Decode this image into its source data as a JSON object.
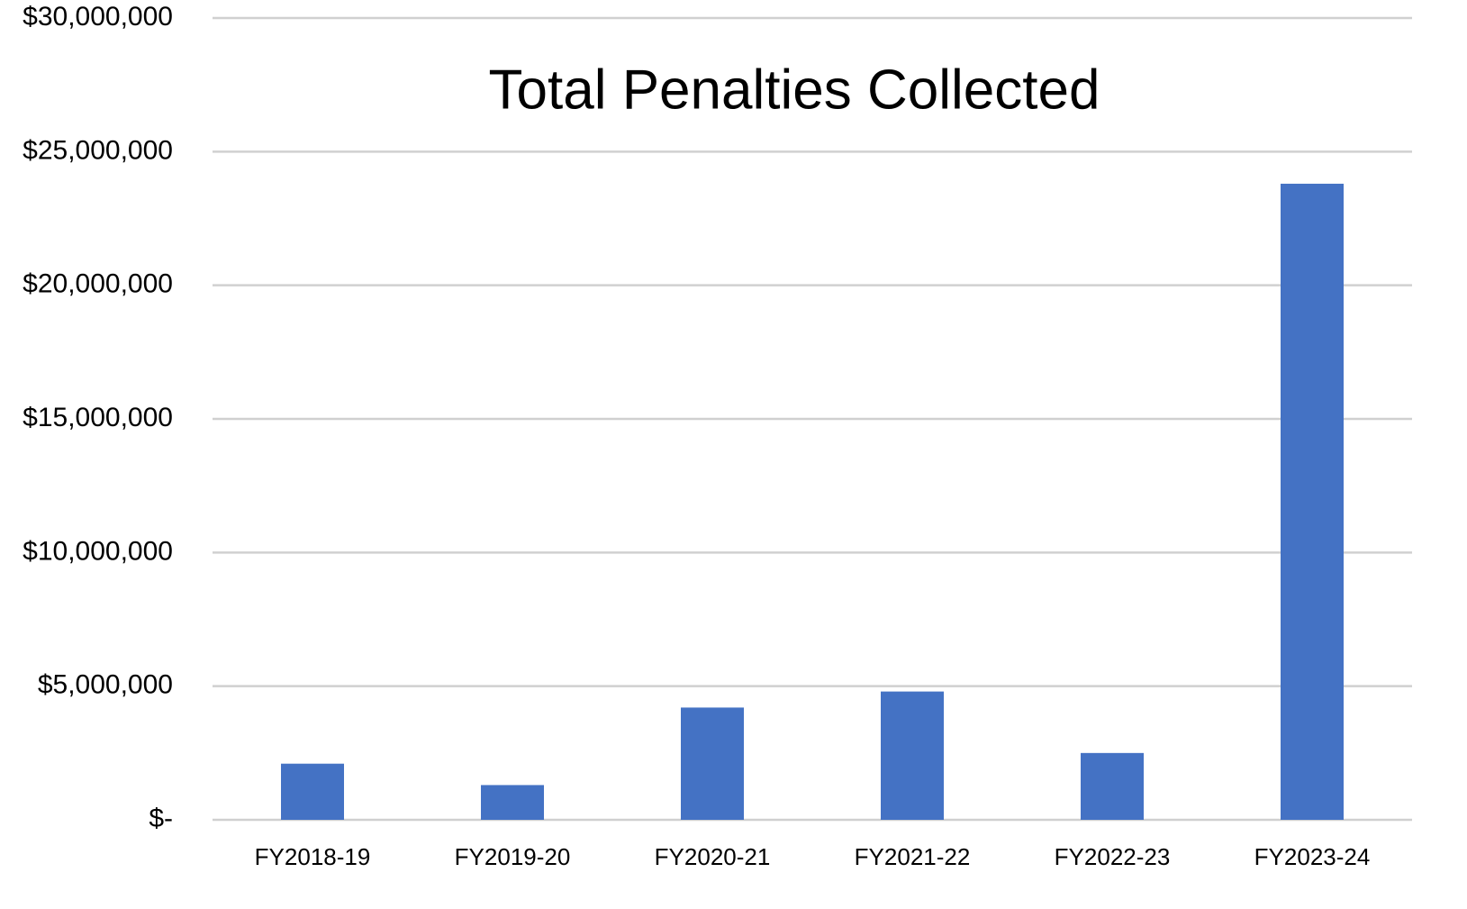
{
  "chart_data": {
    "type": "bar",
    "title": "Total Penalties Collected",
    "categories": [
      "FY2018-19",
      "FY2019-20",
      "FY2020-21",
      "FY2021-22",
      "FY2022-23",
      "FY2023-24"
    ],
    "values": [
      2100000,
      1300000,
      4200000,
      4800000,
      2500000,
      23800000
    ],
    "color": "#4472c4",
    "ylim": [
      0,
      30000000
    ],
    "yticks": [
      {
        "value": 0,
        "label": "$-"
      },
      {
        "value": 5000000,
        "label": "$5,000,000"
      },
      {
        "value": 10000000,
        "label": "$10,000,000"
      },
      {
        "value": 15000000,
        "label": "$15,000,000"
      },
      {
        "value": 20000000,
        "label": "$20,000,000"
      },
      {
        "value": 25000000,
        "label": "$25,000,000"
      },
      {
        "value": 30000000,
        "label": "$30,000,000"
      }
    ],
    "grid": true
  }
}
